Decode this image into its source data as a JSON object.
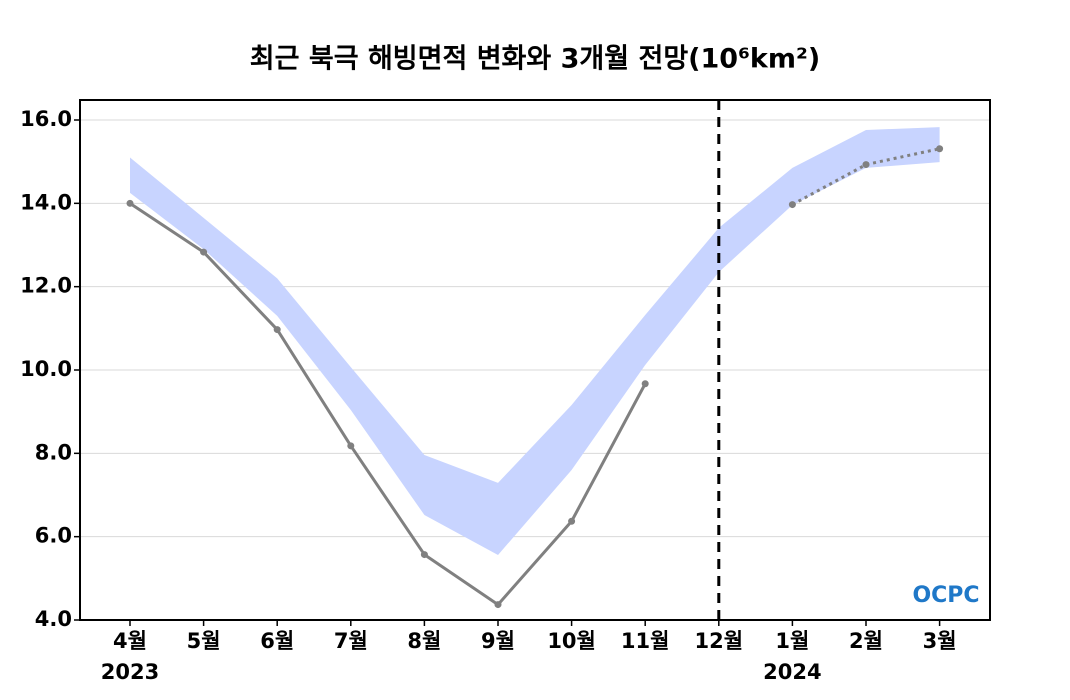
{
  "chart_data": {
    "type": "line",
    "title": "최근 북극 해빙면적 변화와 3개월 전망(10⁶km²)",
    "categories": [
      "4월",
      "5월",
      "6월",
      "7월",
      "8월",
      "9월",
      "10월",
      "11월",
      "12월",
      "1월",
      "2월",
      "3월"
    ],
    "year_labels": [
      "2023",
      null,
      null,
      null,
      null,
      null,
      null,
      null,
      null,
      "2024",
      null,
      null
    ],
    "series": [
      {
        "color": "#808080",
        "style": "solid",
        "values": [
          14.0,
          12.83,
          10.97,
          8.18,
          5.57,
          4.37,
          6.37,
          9.67,
          null,
          null,
          null,
          null
        ]
      },
      {
        "color": "#808080",
        "style": "dotted",
        "values": [
          null,
          null,
          null,
          null,
          null,
          null,
          null,
          null,
          null,
          13.97,
          14.93,
          15.31
        ]
      }
    ],
    "band": {
      "color": "#c8d4ff",
      "upper": [
        15.1,
        13.65,
        12.2,
        10.07,
        7.96,
        7.29,
        9.16,
        11.32,
        13.41,
        14.85,
        15.76,
        15.83
      ],
      "lower": [
        14.25,
        12.9,
        11.3,
        9.04,
        6.52,
        5.56,
        7.6,
        10.12,
        12.35,
        13.96,
        14.85,
        14.99
      ]
    },
    "divider": "12월",
    "ylim": [
      4.0,
      16.48
    ],
    "yticks": [
      {
        "value": 4,
        "label": "4.0"
      },
      {
        "value": 6,
        "label": "6.0"
      },
      {
        "value": 8,
        "label": "8.0"
      },
      {
        "value": 10,
        "label": "10.0"
      },
      {
        "value": 12,
        "label": "12.0"
      },
      {
        "value": 14,
        "label": "14.0"
      },
      {
        "value": 16,
        "label": "16.0"
      }
    ],
    "grid": true,
    "logo": "OCPC"
  }
}
